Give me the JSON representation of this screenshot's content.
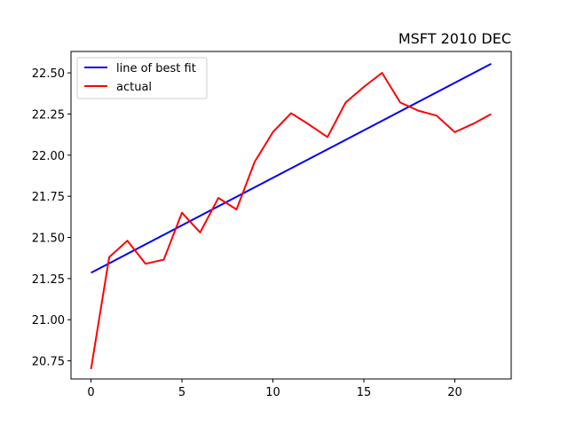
{
  "chart_data": {
    "type": "line",
    "title": "MSFT 2010 DEC",
    "xlabel": "",
    "ylabel": "",
    "xlim": [
      -1.1,
      23.1
    ],
    "ylim": [
      20.64,
      22.63
    ],
    "x_ticks": [
      0,
      5,
      10,
      15,
      20
    ],
    "y_ticks": [
      20.75,
      21.0,
      21.25,
      21.5,
      21.75,
      22.0,
      22.25,
      22.5
    ],
    "y_tick_labels": [
      "20.75",
      "21.00",
      "21.25",
      "21.50",
      "21.75",
      "22.00",
      "22.25",
      "22.50"
    ],
    "grid": false,
    "legend_position": "top-left",
    "series": [
      {
        "name": "line of best fit",
        "color": "#0000ff",
        "x": [
          0,
          22
        ],
        "y": [
          21.285,
          22.555
        ]
      },
      {
        "name": "actual",
        "color": "#ff0000",
        "x": [
          0,
          1,
          2,
          3,
          4,
          5,
          6,
          7,
          8,
          9,
          10,
          11,
          12,
          13,
          14,
          15,
          16,
          17,
          18,
          19,
          20,
          21,
          22
        ],
        "y": [
          20.7,
          21.38,
          21.48,
          21.34,
          21.365,
          21.65,
          21.53,
          21.74,
          21.67,
          21.96,
          22.14,
          22.255,
          22.185,
          22.11,
          22.32,
          22.415,
          22.5,
          22.32,
          22.27,
          22.24,
          22.14,
          22.19,
          22.25
        ]
      }
    ]
  }
}
